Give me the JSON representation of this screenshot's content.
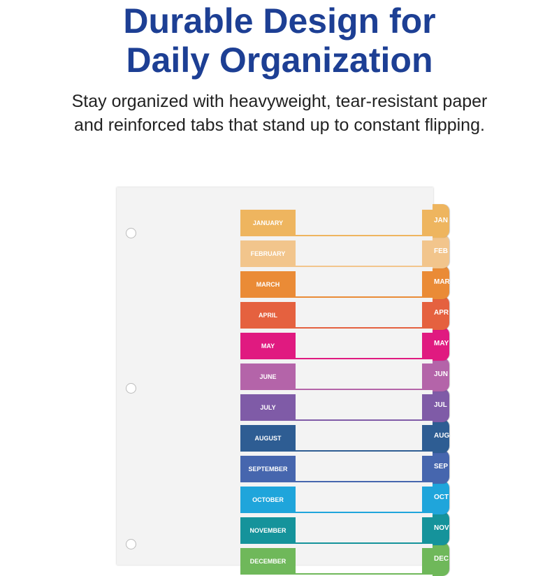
{
  "headline": {
    "line1": "Durable Design for",
    "line2": "Daily Organization"
  },
  "subheadline": {
    "line1": "Stay organized with heavyweight, tear-resistant paper",
    "line2": "and reinforced tabs that stand up to constant flipping."
  },
  "months": [
    {
      "label": "JANUARY",
      "tab": "JAN",
      "color": "#eeb55f"
    },
    {
      "label": "FEBRUARY",
      "tab": "FEB",
      "color": "#f2c58c"
    },
    {
      "label": "MARCH",
      "tab": "MAR",
      "color": "#ea8b36"
    },
    {
      "label": "APRIL",
      "tab": "APR",
      "color": "#e5613f"
    },
    {
      "label": "MAY",
      "tab": "MAY",
      "color": "#e01a80"
    },
    {
      "label": "JUNE",
      "tab": "JUN",
      "color": "#b464a9"
    },
    {
      "label": "JULY",
      "tab": "JUL",
      "color": "#7f5ba7"
    },
    {
      "label": "AUGUST",
      "tab": "AUG",
      "color": "#2e5d93"
    },
    {
      "label": "SEPTEMBER",
      "tab": "SEP",
      "color": "#4666ae"
    },
    {
      "label": "OCTOBER",
      "tab": "OCT",
      "color": "#1fa5db"
    },
    {
      "label": "NOVEMBER",
      "tab": "NOV",
      "color": "#15939b"
    },
    {
      "label": "DECEMBER",
      "tab": "DEC",
      "color": "#6fb85a"
    }
  ]
}
